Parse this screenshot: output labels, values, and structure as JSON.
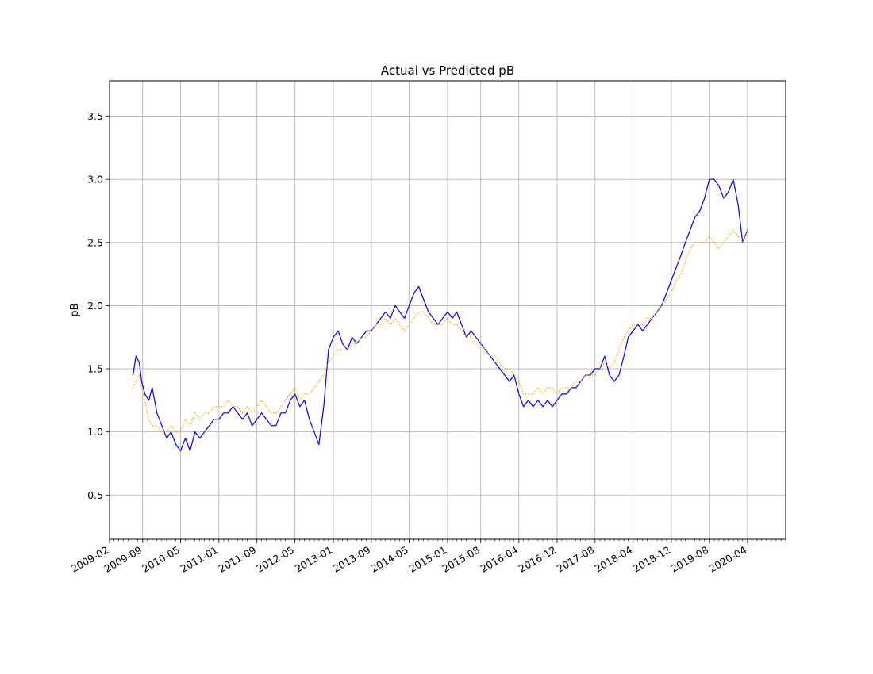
{
  "chart_data": {
    "type": "line",
    "title": "Actual vs Predicted pB",
    "xlabel": "",
    "ylabel": "pB",
    "grid": true,
    "legend": "none",
    "x_axis": {
      "type": "date",
      "range": [
        "2009-02-01",
        "2020-12-01"
      ],
      "ticks": [
        "2009-02",
        "2009-09",
        "2010-05",
        "2011-01",
        "2011-09",
        "2012-05",
        "2013-01",
        "2013-09",
        "2014-05",
        "2015-01",
        "2015-08",
        "2016-04",
        "2016-12",
        "2017-08",
        "2018-04",
        "2018-12",
        "2019-08",
        "2020-04"
      ]
    },
    "y_axis": {
      "range": [
        0.15,
        3.78
      ],
      "ticks": [
        0.5,
        1.0,
        1.5,
        2.0,
        2.5,
        3.0,
        3.5
      ],
      "tick_labels": [
        "0.5",
        "1.0",
        "1.5",
        "2.0",
        "2.5",
        "3.0",
        "3.5"
      ]
    },
    "series": [
      {
        "color": "#0000ff",
        "style": "solid",
        "points": [
          [
            "2009-07-01",
            1.45
          ],
          [
            "2009-07-20",
            1.6
          ],
          [
            "2009-08-10",
            1.55
          ],
          [
            "2009-08-25",
            1.4
          ],
          [
            "2009-09-15",
            1.3
          ],
          [
            "2009-10-10",
            1.25
          ],
          [
            "2009-11-01",
            1.35
          ],
          [
            "2009-12-01",
            1.15
          ],
          [
            "2010-01-01",
            1.05
          ],
          [
            "2010-02-01",
            0.95
          ],
          [
            "2010-03-01",
            1.0
          ],
          [
            "2010-04-01",
            0.9
          ],
          [
            "2010-05-01",
            0.85
          ],
          [
            "2010-06-01",
            0.95
          ],
          [
            "2010-07-01",
            0.85
          ],
          [
            "2010-08-01",
            1.0
          ],
          [
            "2010-09-01",
            0.95
          ],
          [
            "2010-10-01",
            1.0
          ],
          [
            "2010-11-01",
            1.05
          ],
          [
            "2010-12-01",
            1.1
          ],
          [
            "2011-01-01",
            1.1
          ],
          [
            "2011-02-01",
            1.15
          ],
          [
            "2011-03-01",
            1.15
          ],
          [
            "2011-04-01",
            1.2
          ],
          [
            "2011-05-01",
            1.15
          ],
          [
            "2011-06-01",
            1.1
          ],
          [
            "2011-07-01",
            1.15
          ],
          [
            "2011-08-01",
            1.05
          ],
          [
            "2011-09-01",
            1.1
          ],
          [
            "2011-10-01",
            1.15
          ],
          [
            "2011-11-01",
            1.1
          ],
          [
            "2011-12-01",
            1.05
          ],
          [
            "2012-01-01",
            1.05
          ],
          [
            "2012-02-01",
            1.15
          ],
          [
            "2012-03-01",
            1.15
          ],
          [
            "2012-04-01",
            1.25
          ],
          [
            "2012-05-01",
            1.3
          ],
          [
            "2012-06-01",
            1.2
          ],
          [
            "2012-07-01",
            1.25
          ],
          [
            "2012-08-01",
            1.1
          ],
          [
            "2012-09-01",
            1.0
          ],
          [
            "2012-10-01",
            0.9
          ],
          [
            "2012-11-01",
            1.2
          ],
          [
            "2012-12-01",
            1.65
          ],
          [
            "2013-01-01",
            1.75
          ],
          [
            "2013-02-01",
            1.8
          ],
          [
            "2013-03-01",
            1.7
          ],
          [
            "2013-04-01",
            1.65
          ],
          [
            "2013-05-01",
            1.75
          ],
          [
            "2013-06-01",
            1.7
          ],
          [
            "2013-07-01",
            1.75
          ],
          [
            "2013-08-01",
            1.8
          ],
          [
            "2013-09-01",
            1.8
          ],
          [
            "2013-10-01",
            1.85
          ],
          [
            "2013-11-01",
            1.9
          ],
          [
            "2013-12-01",
            1.95
          ],
          [
            "2014-01-01",
            1.9
          ],
          [
            "2014-02-01",
            2.0
          ],
          [
            "2014-03-01",
            1.95
          ],
          [
            "2014-04-01",
            1.9
          ],
          [
            "2014-05-01",
            2.0
          ],
          [
            "2014-06-01",
            2.1
          ],
          [
            "2014-07-01",
            2.15
          ],
          [
            "2014-08-01",
            2.05
          ],
          [
            "2014-09-01",
            1.95
          ],
          [
            "2014-10-01",
            1.9
          ],
          [
            "2014-11-01",
            1.85
          ],
          [
            "2014-12-01",
            1.9
          ],
          [
            "2015-01-01",
            1.95
          ],
          [
            "2015-02-01",
            1.9
          ],
          [
            "2015-03-01",
            1.95
          ],
          [
            "2015-04-01",
            1.85
          ],
          [
            "2015-05-01",
            1.75
          ],
          [
            "2015-06-01",
            1.8
          ],
          [
            "2015-07-01",
            1.75
          ],
          [
            "2015-08-01",
            1.7
          ],
          [
            "2015-09-01",
            1.65
          ],
          [
            "2015-10-01",
            1.6
          ],
          [
            "2015-11-01",
            1.55
          ],
          [
            "2015-12-01",
            1.5
          ],
          [
            "2016-01-01",
            1.45
          ],
          [
            "2016-02-01",
            1.4
          ],
          [
            "2016-03-01",
            1.45
          ],
          [
            "2016-04-01",
            1.3
          ],
          [
            "2016-05-01",
            1.2
          ],
          [
            "2016-06-01",
            1.25
          ],
          [
            "2016-07-01",
            1.2
          ],
          [
            "2016-08-01",
            1.25
          ],
          [
            "2016-09-01",
            1.2
          ],
          [
            "2016-10-01",
            1.25
          ],
          [
            "2016-11-01",
            1.2
          ],
          [
            "2016-12-01",
            1.25
          ],
          [
            "2017-01-01",
            1.3
          ],
          [
            "2017-02-01",
            1.3
          ],
          [
            "2017-03-01",
            1.35
          ],
          [
            "2017-04-01",
            1.35
          ],
          [
            "2017-05-01",
            1.4
          ],
          [
            "2017-06-01",
            1.45
          ],
          [
            "2017-07-01",
            1.45
          ],
          [
            "2017-08-01",
            1.5
          ],
          [
            "2017-09-01",
            1.5
          ],
          [
            "2017-10-01",
            1.6
          ],
          [
            "2017-11-01",
            1.45
          ],
          [
            "2017-12-01",
            1.4
          ],
          [
            "2018-01-01",
            1.45
          ],
          [
            "2018-02-01",
            1.6
          ],
          [
            "2018-03-01",
            1.75
          ],
          [
            "2018-04-01",
            1.8
          ],
          [
            "2018-05-01",
            1.85
          ],
          [
            "2018-06-01",
            1.8
          ],
          [
            "2018-07-01",
            1.85
          ],
          [
            "2018-08-01",
            1.9
          ],
          [
            "2018-09-01",
            1.95
          ],
          [
            "2018-10-01",
            2.0
          ],
          [
            "2018-11-01",
            2.1
          ],
          [
            "2018-12-01",
            2.2
          ],
          [
            "2019-01-01",
            2.3
          ],
          [
            "2019-02-01",
            2.4
          ],
          [
            "2019-03-01",
            2.5
          ],
          [
            "2019-04-01",
            2.6
          ],
          [
            "2019-05-01",
            2.7
          ],
          [
            "2019-06-01",
            2.75
          ],
          [
            "2019-07-01",
            2.85
          ],
          [
            "2019-08-01",
            3.0
          ],
          [
            "2019-09-01",
            3.0
          ],
          [
            "2019-10-01",
            2.95
          ],
          [
            "2019-11-01",
            2.85
          ],
          [
            "2019-12-01",
            2.9
          ],
          [
            "2020-01-01",
            3.0
          ],
          [
            "2020-02-01",
            2.8
          ],
          [
            "2020-03-01",
            2.5
          ],
          [
            "2020-04-01",
            2.6
          ]
        ]
      },
      {
        "color": "#ffa500",
        "style": "dotted",
        "points": [
          [
            "2009-07-01",
            1.35
          ],
          [
            "2009-07-20",
            1.4
          ],
          [
            "2009-08-10",
            1.45
          ],
          [
            "2009-08-25",
            1.35
          ],
          [
            "2009-09-15",
            1.25
          ],
          [
            "2009-10-10",
            1.1
          ],
          [
            "2009-11-01",
            1.05
          ],
          [
            "2009-12-01",
            1.05
          ],
          [
            "2010-01-01",
            1.0
          ],
          [
            "2010-02-01",
            1.0
          ],
          [
            "2010-03-01",
            1.05
          ],
          [
            "2010-04-01",
            1.0
          ],
          [
            "2010-05-01",
            1.0
          ],
          [
            "2010-06-01",
            1.1
          ],
          [
            "2010-07-01",
            1.05
          ],
          [
            "2010-08-01",
            1.15
          ],
          [
            "2010-09-01",
            1.1
          ],
          [
            "2010-10-01",
            1.15
          ],
          [
            "2010-11-01",
            1.15
          ],
          [
            "2010-12-01",
            1.2
          ],
          [
            "2011-01-01",
            1.2
          ],
          [
            "2011-02-01",
            1.2
          ],
          [
            "2011-03-01",
            1.25
          ],
          [
            "2011-04-01",
            1.2
          ],
          [
            "2011-05-01",
            1.2
          ],
          [
            "2011-06-01",
            1.15
          ],
          [
            "2011-07-01",
            1.2
          ],
          [
            "2011-08-01",
            1.15
          ],
          [
            "2011-09-01",
            1.2
          ],
          [
            "2011-10-01",
            1.25
          ],
          [
            "2011-11-01",
            1.2
          ],
          [
            "2011-12-01",
            1.15
          ],
          [
            "2012-01-01",
            1.15
          ],
          [
            "2012-02-01",
            1.2
          ],
          [
            "2012-03-01",
            1.25
          ],
          [
            "2012-04-01",
            1.3
          ],
          [
            "2012-05-01",
            1.35
          ],
          [
            "2012-06-01",
            1.25
          ],
          [
            "2012-07-01",
            1.3
          ],
          [
            "2012-08-01",
            1.3
          ],
          [
            "2012-09-01",
            1.35
          ],
          [
            "2012-10-01",
            1.4
          ],
          [
            "2012-11-01",
            1.45
          ],
          [
            "2012-12-01",
            1.55
          ],
          [
            "2013-01-01",
            1.6
          ],
          [
            "2013-02-01",
            1.65
          ],
          [
            "2013-03-01",
            1.65
          ],
          [
            "2013-04-01",
            1.65
          ],
          [
            "2013-05-01",
            1.7
          ],
          [
            "2013-06-01",
            1.7
          ],
          [
            "2013-07-01",
            1.75
          ],
          [
            "2013-08-01",
            1.75
          ],
          [
            "2013-09-01",
            1.8
          ],
          [
            "2013-10-01",
            1.85
          ],
          [
            "2013-11-01",
            1.85
          ],
          [
            "2013-12-01",
            1.9
          ],
          [
            "2014-01-01",
            1.85
          ],
          [
            "2014-02-01",
            1.9
          ],
          [
            "2014-03-01",
            1.85
          ],
          [
            "2014-04-01",
            1.8
          ],
          [
            "2014-05-01",
            1.85
          ],
          [
            "2014-06-01",
            1.9
          ],
          [
            "2014-07-01",
            1.95
          ],
          [
            "2014-08-01",
            1.95
          ],
          [
            "2014-09-01",
            1.9
          ],
          [
            "2014-10-01",
            1.85
          ],
          [
            "2014-11-01",
            1.85
          ],
          [
            "2014-12-01",
            1.85
          ],
          [
            "2015-01-01",
            1.9
          ],
          [
            "2015-02-01",
            1.85
          ],
          [
            "2015-03-01",
            1.85
          ],
          [
            "2015-04-01",
            1.8
          ],
          [
            "2015-05-01",
            1.75
          ],
          [
            "2015-06-01",
            1.75
          ],
          [
            "2015-07-01",
            1.7
          ],
          [
            "2015-08-01",
            1.7
          ],
          [
            "2015-09-01",
            1.65
          ],
          [
            "2015-10-01",
            1.6
          ],
          [
            "2015-11-01",
            1.6
          ],
          [
            "2015-12-01",
            1.55
          ],
          [
            "2016-01-01",
            1.5
          ],
          [
            "2016-02-01",
            1.5
          ],
          [
            "2016-03-01",
            1.45
          ],
          [
            "2016-04-01",
            1.4
          ],
          [
            "2016-05-01",
            1.3
          ],
          [
            "2016-06-01",
            1.3
          ],
          [
            "2016-07-01",
            1.3
          ],
          [
            "2016-08-01",
            1.35
          ],
          [
            "2016-09-01",
            1.3
          ],
          [
            "2016-10-01",
            1.35
          ],
          [
            "2016-11-01",
            1.35
          ],
          [
            "2016-12-01",
            1.3
          ],
          [
            "2017-01-01",
            1.35
          ],
          [
            "2017-02-01",
            1.35
          ],
          [
            "2017-03-01",
            1.35
          ],
          [
            "2017-04-01",
            1.4
          ],
          [
            "2017-05-01",
            1.4
          ],
          [
            "2017-06-01",
            1.45
          ],
          [
            "2017-07-01",
            1.45
          ],
          [
            "2017-08-01",
            1.45
          ],
          [
            "2017-09-01",
            1.5
          ],
          [
            "2017-10-01",
            1.55
          ],
          [
            "2017-11-01",
            1.5
          ],
          [
            "2017-12-01",
            1.55
          ],
          [
            "2018-01-01",
            1.65
          ],
          [
            "2018-02-01",
            1.75
          ],
          [
            "2018-03-01",
            1.8
          ],
          [
            "2018-04-01",
            1.85
          ],
          [
            "2018-05-01",
            1.85
          ],
          [
            "2018-06-01",
            1.85
          ],
          [
            "2018-07-01",
            1.9
          ],
          [
            "2018-08-01",
            1.9
          ],
          [
            "2018-09-01",
            1.95
          ],
          [
            "2018-10-01",
            2.0
          ],
          [
            "2018-11-01",
            2.05
          ],
          [
            "2018-12-01",
            2.1
          ],
          [
            "2019-01-01",
            2.2
          ],
          [
            "2019-02-01",
            2.25
          ],
          [
            "2019-03-01",
            2.35
          ],
          [
            "2019-04-01",
            2.45
          ],
          [
            "2019-05-01",
            2.5
          ],
          [
            "2019-06-01",
            2.5
          ],
          [
            "2019-07-01",
            2.5
          ],
          [
            "2019-08-01",
            2.55
          ],
          [
            "2019-09-01",
            2.5
          ],
          [
            "2019-10-01",
            2.45
          ],
          [
            "2019-11-01",
            2.5
          ],
          [
            "2019-12-01",
            2.55
          ],
          [
            "2020-01-01",
            2.6
          ],
          [
            "2020-02-01",
            2.55
          ],
          [
            "2020-03-01",
            2.5
          ],
          [
            "2020-04-01",
            2.6
          ]
        ]
      }
    ]
  }
}
